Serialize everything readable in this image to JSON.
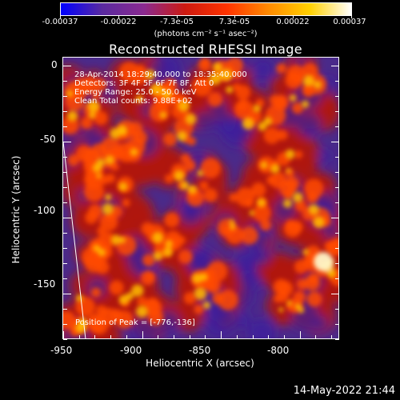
{
  "colorbar": {
    "tick_labels": [
      "-0.00037",
      "-0.00022",
      "-7.3e-05",
      "7.3e-05",
      "0.00022",
      "0.00037"
    ],
    "units": "(photons cm⁻² s⁻¹ asec⁻²)",
    "colors": [
      "#0000ff",
      "#5a2aa0",
      "#8a2a90",
      "#cc1a10",
      "#ff3300",
      "#ff8a00",
      "#ffd000",
      "#ffffff"
    ]
  },
  "plot": {
    "title": "Reconstructed RHESSI Image",
    "annotations": [
      "28-Apr-2014 18:29:40.000 to 18:35:40.000",
      "Detectors: 3F 4F 5F 6F 7F 8F, Att 0",
      "Energy Range: 25.0 - 50.0 keV",
      "Clean    Total counts: 9.88E+02"
    ],
    "peak_label": "Position of Peak = [-776,-136]",
    "x_axis": {
      "title": "Heliocentric X (arcsec)",
      "tick_labels": [
        "-950",
        "-900",
        "-850",
        "-800"
      ],
      "ticks": [
        -950,
        -900,
        -850,
        -800
      ],
      "range": [
        -950,
        -775
      ]
    },
    "y_axis": {
      "title": "Heliocentric Y (arcsec)",
      "tick_labels": [
        "0",
        "-50",
        "-100",
        "-150"
      ],
      "ticks": [
        0,
        -50,
        -100,
        -150
      ],
      "range": [
        -180,
        5
      ]
    }
  },
  "timestamp": "14-May-2022 21:44"
}
